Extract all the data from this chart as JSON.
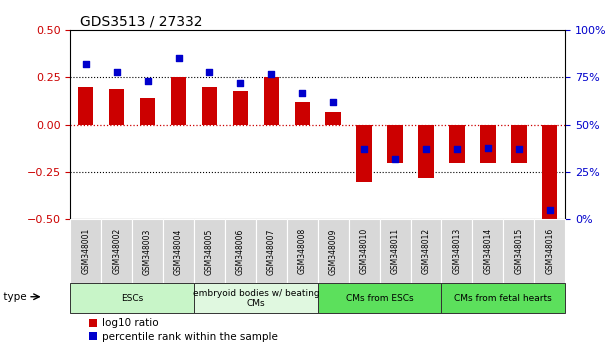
{
  "title": "GDS3513 / 27332",
  "samples": [
    "GSM348001",
    "GSM348002",
    "GSM348003",
    "GSM348004",
    "GSM348005",
    "GSM348006",
    "GSM348007",
    "GSM348008",
    "GSM348009",
    "GSM348010",
    "GSM348011",
    "GSM348012",
    "GSM348013",
    "GSM348014",
    "GSM348015",
    "GSM348016"
  ],
  "log10_ratio": [
    0.2,
    0.19,
    0.14,
    0.25,
    0.2,
    0.18,
    0.25,
    0.12,
    0.07,
    -0.3,
    -0.2,
    -0.28,
    -0.2,
    -0.2,
    -0.2,
    -0.5
  ],
  "percentile_rank": [
    82,
    78,
    73,
    85,
    78,
    72,
    77,
    67,
    62,
    37,
    32,
    37,
    37,
    38,
    37,
    5
  ],
  "bar_color": "#cc0000",
  "dot_color": "#0000cc",
  "ylim_left": [
    -0.5,
    0.5
  ],
  "ylim_right": [
    0,
    100
  ],
  "yticks_left": [
    -0.5,
    -0.25,
    0,
    0.25,
    0.5
  ],
  "yticks_right": [
    0,
    25,
    50,
    75,
    100
  ],
  "cell_types": [
    {
      "label": "ESCs",
      "start": 0,
      "end": 3,
      "color": "#c8f5c8"
    },
    {
      "label": "embryoid bodies w/ beating\nCMs",
      "start": 4,
      "end": 7,
      "color": "#e0f8e0"
    },
    {
      "label": "CMs from ESCs",
      "start": 8,
      "end": 11,
      "color": "#5ce05c"
    },
    {
      "label": "CMs from fetal hearts",
      "start": 12,
      "end": 15,
      "color": "#5ce05c"
    }
  ],
  "legend_red_label": "log10 ratio",
  "legend_blue_label": "percentile rank within the sample",
  "title_fontsize": 10,
  "tick_fontsize": 8,
  "bar_width": 0.5
}
